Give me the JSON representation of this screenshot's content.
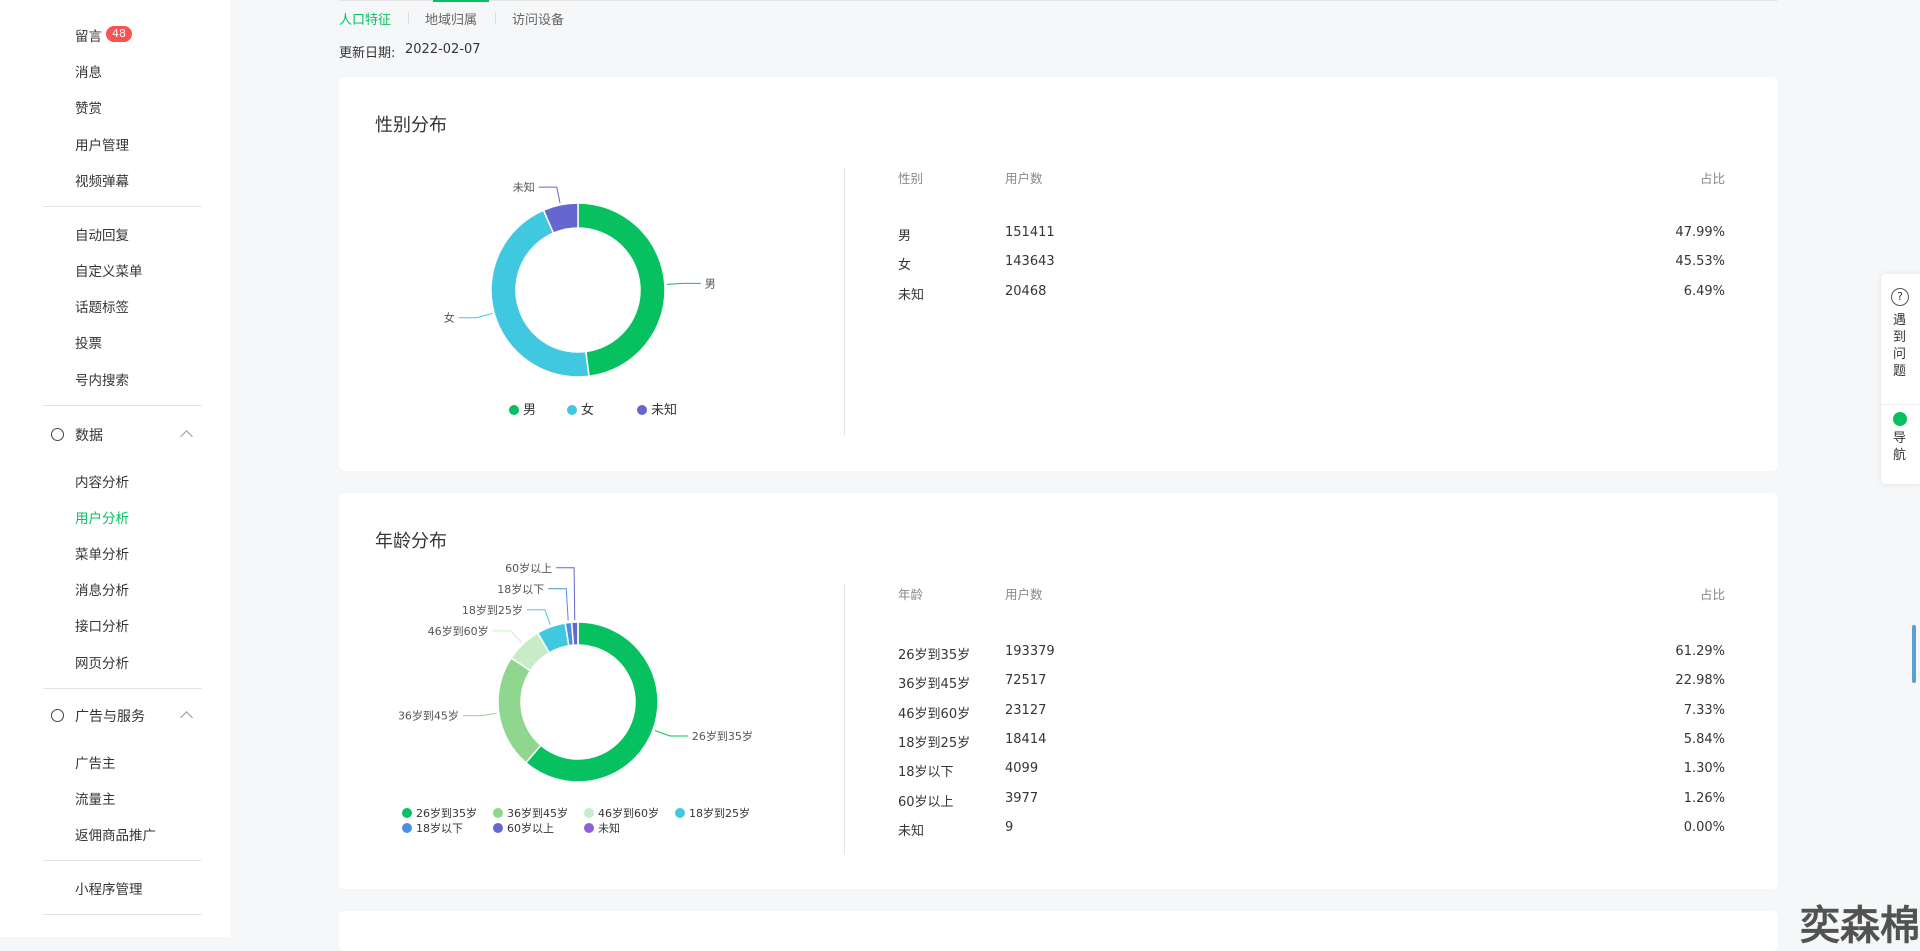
{
  "sidebar": {
    "badge": 48,
    "sections": [
      {
        "items": [
          "留言",
          "消息",
          "赞赏",
          "用户管理",
          "视频弹幕"
        ]
      },
      {
        "items": [
          "自动回复",
          "自定义菜单",
          "话题标签",
          "投票",
          "号内搜索"
        ]
      },
      {
        "title": "数据",
        "items": [
          "内容分析",
          "用户分析",
          "菜单分析",
          "消息分析",
          "接口分析",
          "网页分析"
        ]
      },
      {
        "title": "广告与服务",
        "items": [
          "广告主",
          "流量主",
          "返佣商品推广"
        ]
      },
      {
        "items": [
          "小程序管理"
        ]
      }
    ]
  },
  "tabs": [
    "人口特征",
    "地域归属",
    "访问设备"
  ],
  "update_label": "更新日期:",
  "update_date": "2022-02-07",
  "gender": {
    "title": "性别分布",
    "colors": [
      "#07c160",
      "#40c8e0",
      "#6467d0"
    ],
    "table": {
      "headers": [
        "性别",
        "用户数",
        "占比"
      ],
      "rows": [
        [
          "男",
          151411,
          "47.99%"
        ],
        [
          "女",
          143643,
          "45.53%"
        ],
        [
          "未知",
          20468,
          "6.49%"
        ]
      ]
    }
  },
  "age": {
    "title": "年龄分布",
    "colors": [
      "#07c160",
      "#8fd68f",
      "#c8ecc8",
      "#40c8e0",
      "#4a90e2",
      "#6467d0",
      "#8e5fd6"
    ],
    "table": {
      "headers": [
        "年龄",
        "用户数",
        "占比"
      ],
      "rows": [
        [
          "26岁到35岁",
          193379,
          "61.29%"
        ],
        [
          "36岁到45岁",
          72517,
          "22.98%"
        ],
        [
          "46岁到60岁",
          23127,
          "7.33%"
        ],
        [
          "18岁到25岁",
          18414,
          "5.84%"
        ],
        [
          "18岁以下",
          4099,
          "1.30%"
        ],
        [
          "60岁以上",
          3977,
          "1.26%"
        ],
        [
          "未知",
          9,
          "0.00%"
        ]
      ]
    }
  },
  "help": {
    "problem": "遇到问题",
    "nav": "导航"
  },
  "watermark": "奕森棉"
}
